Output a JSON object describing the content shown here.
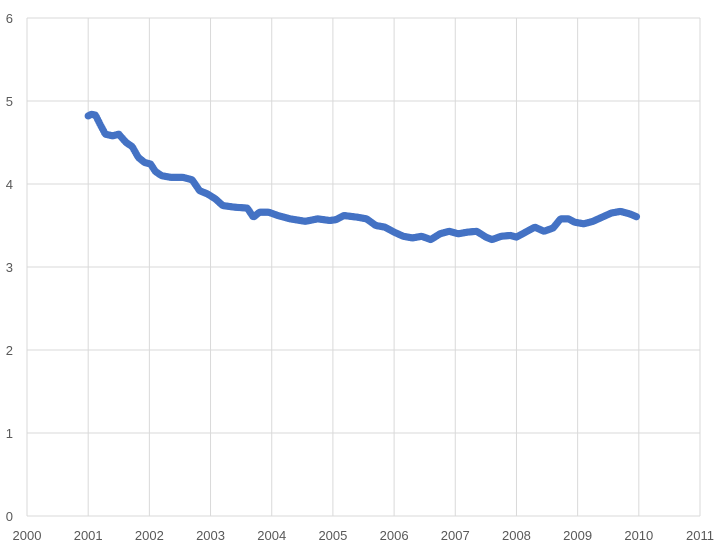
{
  "chart_data": {
    "type": "scatter",
    "title": "",
    "xlabel": "",
    "ylabel": "",
    "xlim": [
      2000,
      2011
    ],
    "ylim": [
      0,
      6
    ],
    "grid": true,
    "marker_color": "#4472C4",
    "x_ticks": [
      "2000",
      "2001",
      "2002",
      "2003",
      "2004",
      "2005",
      "2006",
      "2007",
      "2008",
      "2009",
      "2010",
      "2011"
    ],
    "y_ticks": [
      "0",
      "1",
      "2",
      "3",
      "4",
      "5",
      "6"
    ],
    "anchors": [
      [
        2001.0,
        4.82
      ],
      [
        2001.05,
        4.84
      ],
      [
        2001.12,
        4.83
      ],
      [
        2001.18,
        4.74
      ],
      [
        2001.28,
        4.6
      ],
      [
        2001.4,
        4.58
      ],
      [
        2001.5,
        4.6
      ],
      [
        2001.62,
        4.5
      ],
      [
        2001.72,
        4.45
      ],
      [
        2001.82,
        4.32
      ],
      [
        2001.92,
        4.26
      ],
      [
        2002.02,
        4.24
      ],
      [
        2002.1,
        4.15
      ],
      [
        2002.2,
        4.1
      ],
      [
        2002.35,
        4.08
      ],
      [
        2002.55,
        4.08
      ],
      [
        2002.7,
        4.05
      ],
      [
        2002.82,
        3.92
      ],
      [
        2002.95,
        3.88
      ],
      [
        2003.08,
        3.82
      ],
      [
        2003.2,
        3.74
      ],
      [
        2003.4,
        3.72
      ],
      [
        2003.6,
        3.71
      ],
      [
        2003.7,
        3.6
      ],
      [
        2003.8,
        3.66
      ],
      [
        2003.95,
        3.66
      ],
      [
        2004.1,
        3.62
      ],
      [
        2004.3,
        3.58
      ],
      [
        2004.55,
        3.55
      ],
      [
        2004.75,
        3.58
      ],
      [
        2004.95,
        3.56
      ],
      [
        2005.05,
        3.57
      ],
      [
        2005.18,
        3.62
      ],
      [
        2005.4,
        3.6
      ],
      [
        2005.55,
        3.58
      ],
      [
        2005.7,
        3.5
      ],
      [
        2005.85,
        3.48
      ],
      [
        2006.0,
        3.42
      ],
      [
        2006.15,
        3.37
      ],
      [
        2006.3,
        3.35
      ],
      [
        2006.45,
        3.37
      ],
      [
        2006.6,
        3.33
      ],
      [
        2006.75,
        3.4
      ],
      [
        2006.9,
        3.43
      ],
      [
        2007.05,
        3.4
      ],
      [
        2007.2,
        3.42
      ],
      [
        2007.35,
        3.43
      ],
      [
        2007.5,
        3.36
      ],
      [
        2007.6,
        3.33
      ],
      [
        2007.75,
        3.37
      ],
      [
        2007.9,
        3.38
      ],
      [
        2008.0,
        3.36
      ],
      [
        2008.15,
        3.42
      ],
      [
        2008.3,
        3.48
      ],
      [
        2008.45,
        3.43
      ],
      [
        2008.6,
        3.47
      ],
      [
        2008.72,
        3.58
      ],
      [
        2008.85,
        3.58
      ],
      [
        2008.95,
        3.54
      ],
      [
        2009.1,
        3.52
      ],
      [
        2009.25,
        3.55
      ],
      [
        2009.4,
        3.6
      ],
      [
        2009.55,
        3.65
      ],
      [
        2009.7,
        3.67
      ],
      [
        2009.85,
        3.64
      ],
      [
        2009.98,
        3.6
      ]
    ]
  }
}
